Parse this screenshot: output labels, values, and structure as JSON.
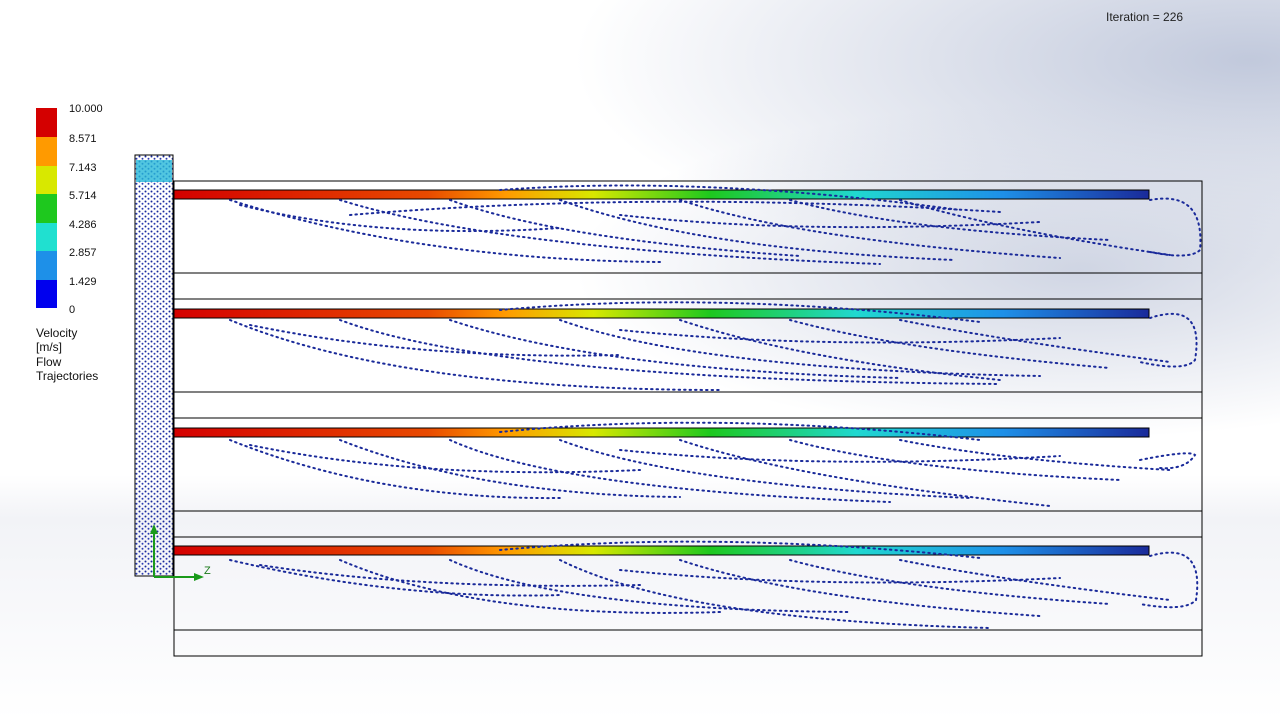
{
  "iteration_text": "Iteration = 226",
  "legend": {
    "title": "Velocity [m/s]",
    "subtitle": "Flow Trajectories",
    "ticks": [
      "10.000",
      "8.571",
      "7.143",
      "5.714",
      "4.286",
      "2.857",
      "1.429",
      "0"
    ],
    "colors": [
      "#d40000",
      "#ff9a00",
      "#d8e800",
      "#1ec81e",
      "#20e0d0",
      "#1e90e8",
      "#0000ee"
    ]
  },
  "axis": {
    "z_label": "Z"
  },
  "colors": {
    "trajectory": "#1a2a9a",
    "outline": "#000000"
  }
}
